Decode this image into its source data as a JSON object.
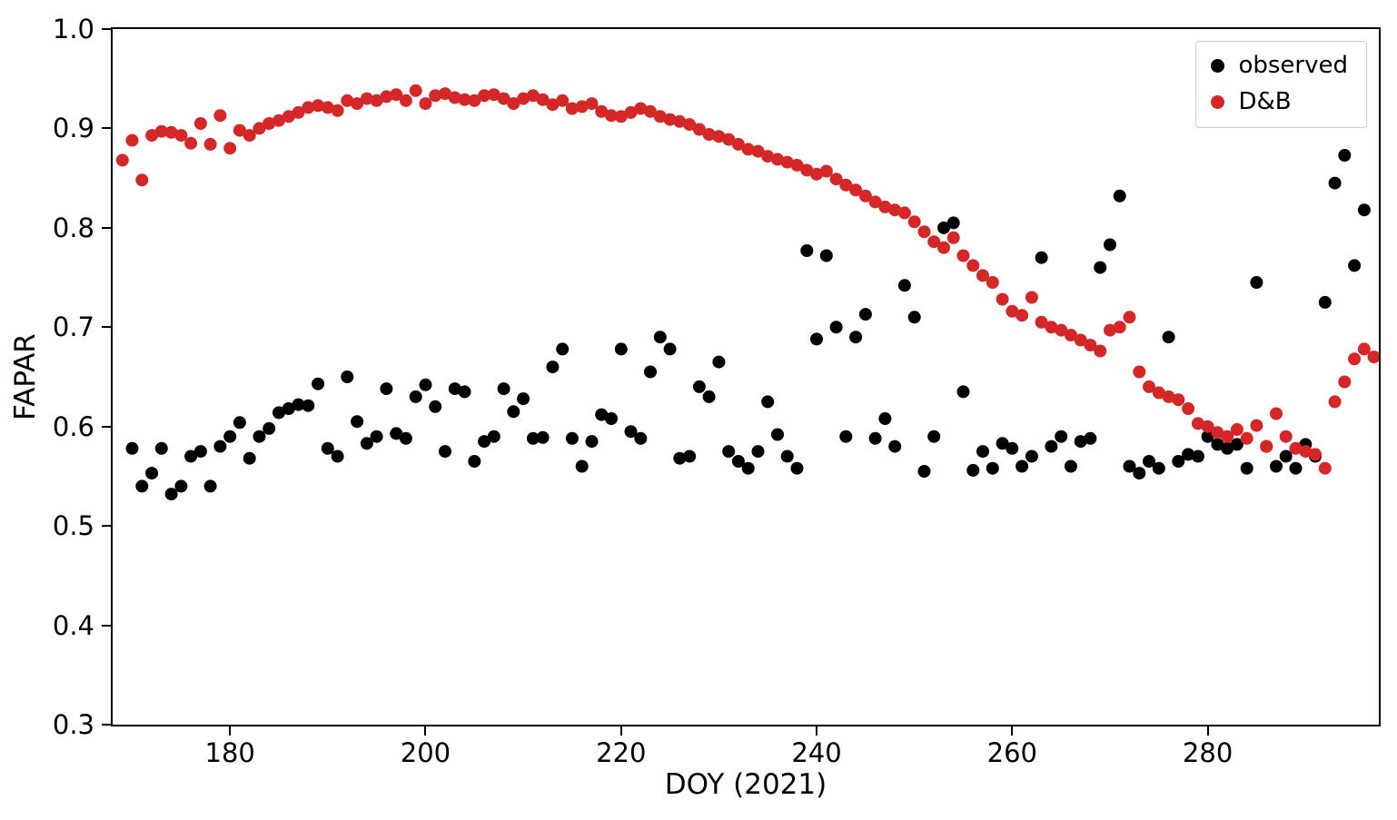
{
  "chart_data": {
    "type": "scatter",
    "title": "",
    "xlabel": "DOY (2021)",
    "ylabel": "FAPAR",
    "xlim": [
      168,
      297.5
    ],
    "ylim": [
      0.3,
      1.0
    ],
    "x_ticks": [
      180,
      200,
      220,
      240,
      260,
      280
    ],
    "x_tick_labels": [
      "180",
      "200",
      "220",
      "240",
      "260",
      "280"
    ],
    "y_ticks": [
      0.3,
      0.4,
      0.5,
      0.6,
      0.7,
      0.8,
      0.9,
      1.0
    ],
    "y_tick_labels": [
      "0.3",
      "0.4",
      "0.5",
      "0.6",
      "0.7",
      "0.8",
      "0.9",
      "1.0"
    ],
    "grid": false,
    "legend_position": "upper right",
    "marker_radius_px": 7,
    "series": [
      {
        "id": "observed",
        "name": "observed",
        "color": "#000000",
        "points": [
          [
            170,
            0.578
          ],
          [
            171,
            0.54
          ],
          [
            172,
            0.553
          ],
          [
            173,
            0.578
          ],
          [
            174,
            0.532
          ],
          [
            175,
            0.54
          ],
          [
            176,
            0.57
          ],
          [
            177,
            0.575
          ],
          [
            178,
            0.54
          ],
          [
            179,
            0.58
          ],
          [
            180,
            0.59
          ],
          [
            181,
            0.604
          ],
          [
            182,
            0.568
          ],
          [
            183,
            0.59
          ],
          [
            184,
            0.598
          ],
          [
            185,
            0.614
          ],
          [
            186,
            0.618
          ],
          [
            187,
            0.622
          ],
          [
            188,
            0.621
          ],
          [
            189,
            0.643
          ],
          [
            190,
            0.578
          ],
          [
            191,
            0.57
          ],
          [
            192,
            0.65
          ],
          [
            193,
            0.605
          ],
          [
            194,
            0.583
          ],
          [
            195,
            0.59
          ],
          [
            196,
            0.638
          ],
          [
            197,
            0.593
          ],
          [
            198,
            0.588
          ],
          [
            199,
            0.63
          ],
          [
            200,
            0.642
          ],
          [
            201,
            0.62
          ],
          [
            202,
            0.575
          ],
          [
            203,
            0.638
          ],
          [
            204,
            0.635
          ],
          [
            205,
            0.565
          ],
          [
            206,
            0.585
          ],
          [
            207,
            0.59
          ],
          [
            208,
            0.638
          ],
          [
            209,
            0.615
          ],
          [
            210,
            0.628
          ],
          [
            211,
            0.588
          ],
          [
            212,
            0.589
          ],
          [
            213,
            0.66
          ],
          [
            214,
            0.678
          ],
          [
            215,
            0.588
          ],
          [
            216,
            0.56
          ],
          [
            217,
            0.585
          ],
          [
            218,
            0.612
          ],
          [
            219,
            0.608
          ],
          [
            220,
            0.678
          ],
          [
            221,
            0.595
          ],
          [
            222,
            0.588
          ],
          [
            223,
            0.655
          ],
          [
            224,
            0.69
          ],
          [
            225,
            0.678
          ],
          [
            226,
            0.568
          ],
          [
            227,
            0.57
          ],
          [
            228,
            0.64
          ],
          [
            229,
            0.63
          ],
          [
            230,
            0.665
          ],
          [
            231,
            0.575
          ],
          [
            232,
            0.565
          ],
          [
            233,
            0.558
          ],
          [
            234,
            0.575
          ],
          [
            235,
            0.625
          ],
          [
            236,
            0.592
          ],
          [
            237,
            0.57
          ],
          [
            238,
            0.558
          ],
          [
            239,
            0.777
          ],
          [
            240,
            0.688
          ],
          [
            241,
            0.772
          ],
          [
            242,
            0.7
          ],
          [
            243,
            0.59
          ],
          [
            244,
            0.69
          ],
          [
            245,
            0.713
          ],
          [
            246,
            0.588
          ],
          [
            247,
            0.608
          ],
          [
            248,
            0.58
          ],
          [
            249,
            0.742
          ],
          [
            250,
            0.71
          ],
          [
            251,
            0.555
          ],
          [
            252,
            0.59
          ],
          [
            253,
            0.8
          ],
          [
            254,
            0.805
          ],
          [
            255,
            0.635
          ],
          [
            256,
            0.556
          ],
          [
            257,
            0.575
          ],
          [
            258,
            0.558
          ],
          [
            259,
            0.583
          ],
          [
            260,
            0.578
          ],
          [
            261,
            0.56
          ],
          [
            262,
            0.57
          ],
          [
            263,
            0.77
          ],
          [
            264,
            0.58
          ],
          [
            265,
            0.59
          ],
          [
            266,
            0.56
          ],
          [
            267,
            0.585
          ],
          [
            268,
            0.588
          ],
          [
            269,
            0.76
          ],
          [
            270,
            0.783
          ],
          [
            271,
            0.832
          ],
          [
            272,
            0.56
          ],
          [
            273,
            0.553
          ],
          [
            274,
            0.565
          ],
          [
            275,
            0.558
          ],
          [
            276,
            0.69
          ],
          [
            277,
            0.565
          ],
          [
            278,
            0.572
          ],
          [
            279,
            0.57
          ],
          [
            280,
            0.59
          ],
          [
            281,
            0.582
          ],
          [
            282,
            0.578
          ],
          [
            283,
            0.582
          ],
          [
            284,
            0.558
          ],
          [
            285,
            0.745
          ],
          [
            286,
            0.58
          ],
          [
            287,
            0.56
          ],
          [
            288,
            0.57
          ],
          [
            289,
            0.558
          ],
          [
            290,
            0.582
          ],
          [
            291,
            0.57
          ],
          [
            292,
            0.725
          ],
          [
            293,
            0.845
          ],
          [
            294,
            0.873
          ],
          [
            295,
            0.762
          ],
          [
            296,
            0.818
          ]
        ]
      },
      {
        "id": "db",
        "name": "D&B",
        "color": "#d62728",
        "points": [
          [
            169,
            0.868
          ],
          [
            170,
            0.888
          ],
          [
            171,
            0.848
          ],
          [
            172,
            0.893
          ],
          [
            173,
            0.897
          ],
          [
            174,
            0.896
          ],
          [
            175,
            0.893
          ],
          [
            176,
            0.885
          ],
          [
            177,
            0.905
          ],
          [
            178,
            0.884
          ],
          [
            179,
            0.913
          ],
          [
            180,
            0.88
          ],
          [
            181,
            0.898
          ],
          [
            182,
            0.893
          ],
          [
            183,
            0.9
          ],
          [
            184,
            0.905
          ],
          [
            185,
            0.908
          ],
          [
            186,
            0.912
          ],
          [
            187,
            0.916
          ],
          [
            188,
            0.921
          ],
          [
            189,
            0.923
          ],
          [
            190,
            0.921
          ],
          [
            191,
            0.918
          ],
          [
            192,
            0.928
          ],
          [
            193,
            0.925
          ],
          [
            194,
            0.93
          ],
          [
            195,
            0.928
          ],
          [
            196,
            0.932
          ],
          [
            197,
            0.934
          ],
          [
            198,
            0.928
          ],
          [
            199,
            0.938
          ],
          [
            200,
            0.925
          ],
          [
            201,
            0.933
          ],
          [
            202,
            0.935
          ],
          [
            203,
            0.931
          ],
          [
            204,
            0.929
          ],
          [
            205,
            0.928
          ],
          [
            206,
            0.933
          ],
          [
            207,
            0.934
          ],
          [
            208,
            0.93
          ],
          [
            209,
            0.925
          ],
          [
            210,
            0.93
          ],
          [
            211,
            0.933
          ],
          [
            212,
            0.929
          ],
          [
            213,
            0.924
          ],
          [
            214,
            0.928
          ],
          [
            215,
            0.92
          ],
          [
            216,
            0.922
          ],
          [
            217,
            0.925
          ],
          [
            218,
            0.917
          ],
          [
            219,
            0.913
          ],
          [
            220,
            0.912
          ],
          [
            221,
            0.916
          ],
          [
            222,
            0.92
          ],
          [
            223,
            0.917
          ],
          [
            224,
            0.912
          ],
          [
            225,
            0.909
          ],
          [
            226,
            0.907
          ],
          [
            227,
            0.904
          ],
          [
            228,
            0.899
          ],
          [
            229,
            0.894
          ],
          [
            230,
            0.892
          ],
          [
            231,
            0.889
          ],
          [
            232,
            0.884
          ],
          [
            233,
            0.879
          ],
          [
            234,
            0.877
          ],
          [
            235,
            0.872
          ],
          [
            236,
            0.869
          ],
          [
            237,
            0.866
          ],
          [
            238,
            0.863
          ],
          [
            239,
            0.858
          ],
          [
            240,
            0.854
          ],
          [
            241,
            0.857
          ],
          [
            242,
            0.849
          ],
          [
            243,
            0.843
          ],
          [
            244,
            0.838
          ],
          [
            245,
            0.832
          ],
          [
            246,
            0.826
          ],
          [
            247,
            0.821
          ],
          [
            248,
            0.818
          ],
          [
            249,
            0.815
          ],
          [
            250,
            0.806
          ],
          [
            251,
            0.796
          ],
          [
            252,
            0.786
          ],
          [
            253,
            0.78
          ],
          [
            254,
            0.79
          ],
          [
            255,
            0.772
          ],
          [
            256,
            0.762
          ],
          [
            257,
            0.752
          ],
          [
            258,
            0.745
          ],
          [
            259,
            0.728
          ],
          [
            260,
            0.716
          ],
          [
            261,
            0.712
          ],
          [
            262,
            0.73
          ],
          [
            263,
            0.705
          ],
          [
            264,
            0.7
          ],
          [
            265,
            0.697
          ],
          [
            266,
            0.692
          ],
          [
            267,
            0.687
          ],
          [
            268,
            0.682
          ],
          [
            269,
            0.676
          ],
          [
            270,
            0.697
          ],
          [
            271,
            0.7
          ],
          [
            272,
            0.71
          ],
          [
            273,
            0.655
          ],
          [
            274,
            0.64
          ],
          [
            275,
            0.634
          ],
          [
            276,
            0.63
          ],
          [
            277,
            0.627
          ],
          [
            278,
            0.618
          ],
          [
            279,
            0.603
          ],
          [
            280,
            0.6
          ],
          [
            281,
            0.594
          ],
          [
            282,
            0.59
          ],
          [
            283,
            0.597
          ],
          [
            284,
            0.588
          ],
          [
            285,
            0.601
          ],
          [
            286,
            0.58
          ],
          [
            287,
            0.613
          ],
          [
            288,
            0.59
          ],
          [
            289,
            0.578
          ],
          [
            290,
            0.575
          ],
          [
            291,
            0.572
          ],
          [
            292,
            0.558
          ],
          [
            293,
            0.625
          ],
          [
            294,
            0.645
          ],
          [
            295,
            0.668
          ],
          [
            296,
            0.678
          ],
          [
            297,
            0.67
          ]
        ]
      }
    ]
  }
}
